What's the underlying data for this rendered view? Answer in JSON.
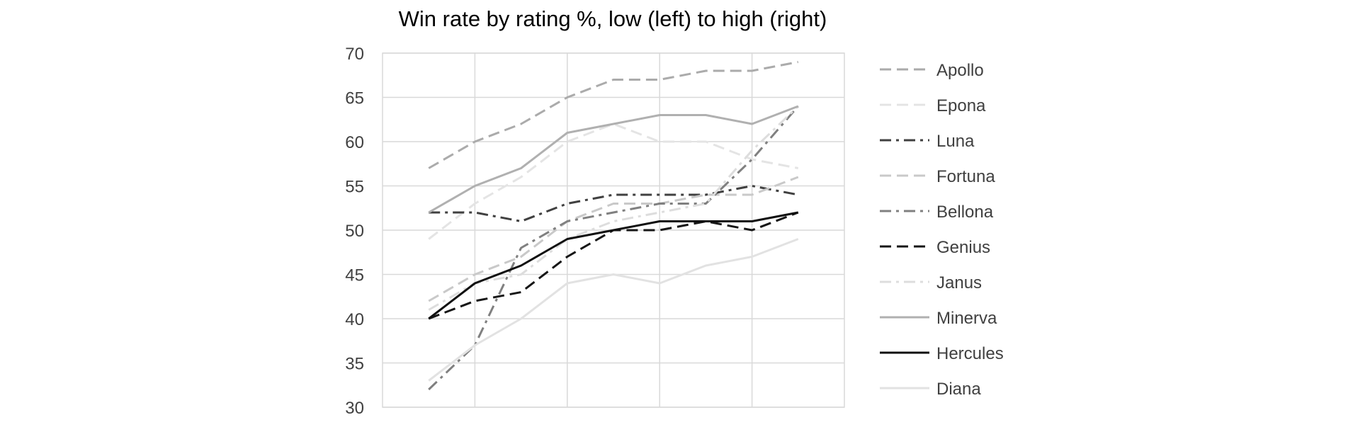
{
  "chart_data": {
    "type": "line",
    "title": "Win rate by rating %, low (left) to high (right)",
    "xlabel": "",
    "ylabel": "",
    "ylim": [
      30,
      70
    ],
    "yticks": [
      "30",
      "35",
      "40",
      "45",
      "50",
      "55",
      "60",
      "65",
      "70"
    ],
    "x": [
      1,
      2,
      3,
      4,
      5,
      6,
      7,
      8,
      9
    ],
    "xlim": [
      0,
      10
    ],
    "grid": true,
    "legend_position": "right",
    "series": [
      {
        "name": "Apollo",
        "values": [
          57,
          60,
          62,
          65,
          67,
          67,
          68,
          68,
          69
        ],
        "color": "#ababab",
        "dash": "dashed"
      },
      {
        "name": "Epona",
        "values": [
          49,
          53,
          56,
          60,
          62,
          60,
          60,
          58,
          57
        ],
        "color": "#e4e4e4",
        "dash": "dashed"
      },
      {
        "name": "Luna",
        "values": [
          52,
          52,
          51,
          53,
          54,
          54,
          54,
          55,
          54
        ],
        "color": "#404040",
        "dash": "dashdot"
      },
      {
        "name": "Fortuna",
        "values": [
          42,
          45,
          47,
          51,
          53,
          53,
          54,
          54,
          56
        ],
        "color": "#c9c9c9",
        "dash": "dashed"
      },
      {
        "name": "Bellona",
        "values": [
          32,
          37,
          48,
          51,
          52,
          53,
          53,
          58,
          64
        ],
        "color": "#808080",
        "dash": "dashdot"
      },
      {
        "name": "Genius",
        "values": [
          40,
          42,
          43,
          47,
          50,
          50,
          51,
          50,
          52
        ],
        "color": "#161616",
        "dash": "dashed"
      },
      {
        "name": "Janus",
        "values": [
          41,
          44,
          45,
          49,
          51,
          52,
          53,
          59,
          64
        ],
        "color": "#dddddd",
        "dash": "dashdot"
      },
      {
        "name": "Minerva",
        "values": [
          52,
          55,
          57,
          61,
          62,
          63,
          63,
          62,
          64
        ],
        "color": "#b0b0b0",
        "dash": "solid"
      },
      {
        "name": "Hercules",
        "values": [
          40,
          44,
          46,
          49,
          50,
          51,
          51,
          51,
          52
        ],
        "color": "#101010",
        "dash": "solid"
      },
      {
        "name": "Diana",
        "values": [
          33,
          37,
          40,
          44,
          45,
          44,
          46,
          47,
          49
        ],
        "color": "#e2e2e2",
        "dash": "solid"
      }
    ]
  }
}
